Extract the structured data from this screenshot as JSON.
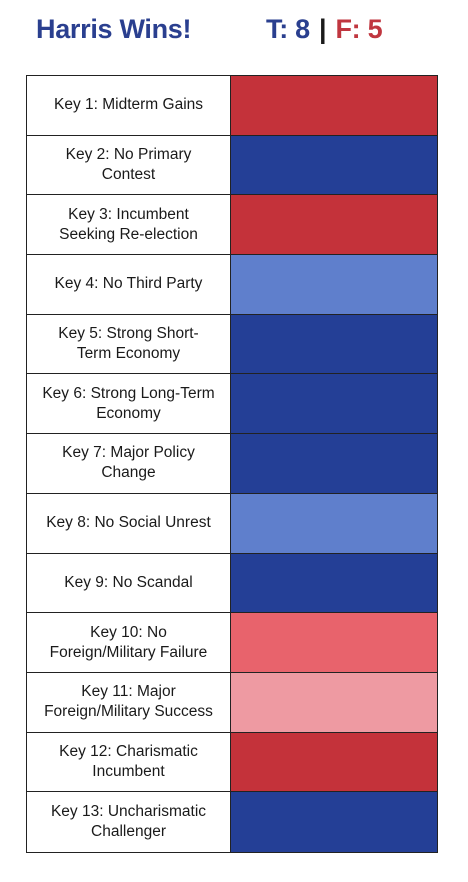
{
  "header": {
    "title": "Harris Wins!",
    "true_count": "T: 8",
    "separator": "|",
    "false_count": "F: 5"
  },
  "colors": {
    "title_blue": "#2a3f8f",
    "false_red": "#c0363f",
    "dark_red": "#c4323a",
    "dark_blue": "#243f96",
    "light_blue": "#5f7fcc",
    "salmon": "#e8636c",
    "pink": "#ee9aa2"
  },
  "keys": [
    {
      "label": "Key 1: Midterm Gains",
      "color": "#c4323a"
    },
    {
      "label": "Key 2: No Primary\nContest",
      "color": "#243f96"
    },
    {
      "label": "Key 3: Incumbent\nSeeking Re-election",
      "color": "#c4323a"
    },
    {
      "label": "Key 4: No Third Party",
      "color": "#5f7fcc"
    },
    {
      "label": "Key 5: Strong Short-\nTerm Economy",
      "color": "#243f96"
    },
    {
      "label": "Key 6: Strong Long-Term\nEconomy",
      "color": "#243f96"
    },
    {
      "label": "Key 7: Major Policy\nChange",
      "color": "#243f96"
    },
    {
      "label": "Key 8: No Social Unrest",
      "color": "#5f7fcc"
    },
    {
      "label": "Key 9: No Scandal",
      "color": "#243f96"
    },
    {
      "label": "Key 10: No\nForeign/Military Failure",
      "color": "#e8636c"
    },
    {
      "label": "Key 11: Major\nForeign/Military Success",
      "color": "#ee9aa2"
    },
    {
      "label": "Key 12: Charismatic\nIncumbent",
      "color": "#c4323a"
    },
    {
      "label": "Key 13: Uncharismatic\nChallenger",
      "color": "#243f96"
    }
  ]
}
